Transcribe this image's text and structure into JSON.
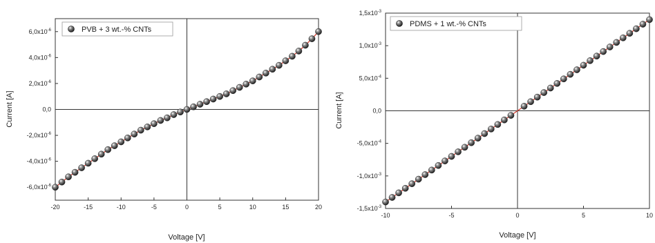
{
  "chart_data": [
    {
      "type": "scatter",
      "title": "",
      "xlabel": "Voltage [V]",
      "ylabel": "Current [A]",
      "xlim": [
        -20,
        20
      ],
      "ylim": [
        -7e-06,
        7e-06
      ],
      "xticks": [
        -20,
        -15,
        -10,
        -5,
        0,
        5,
        10,
        15,
        20
      ],
      "xtick_labels": [
        "-20",
        "-15",
        "-10",
        "-5",
        "0",
        "5",
        "10",
        "15",
        "20"
      ],
      "yticks": [
        -6e-06,
        -4e-06,
        -2e-06,
        0,
        2e-06,
        4e-06,
        6e-06
      ],
      "ytick_labels": [
        {
          "mant": "-6,0x10",
          "exp": "-6"
        },
        {
          "mant": "-4,0x10",
          "exp": "-6"
        },
        {
          "mant": "-2,0x10",
          "exp": "-6"
        },
        {
          "mant": "0,0",
          "exp": ""
        },
        {
          "mant": "2,0x10",
          "exp": "-6"
        },
        {
          "mant": "4,0x10",
          "exp": "-6"
        },
        {
          "mant": "6,0x10",
          "exp": "-6"
        }
      ],
      "legend_position": "top-left",
      "marker_color": "#2b2b2b",
      "line_color": "#d23b2e",
      "series": [
        {
          "name": "PVB + 3 wt.-% CNTs",
          "x": [
            -20,
            -19,
            -18,
            -17,
            -16,
            -15,
            -14,
            -13,
            -12,
            -11,
            -10,
            -9,
            -8,
            -7,
            -6,
            -5,
            -4,
            -3,
            -2,
            -1,
            0,
            1,
            2,
            3,
            4,
            5,
            6,
            7,
            8,
            9,
            10,
            11,
            12,
            13,
            14,
            15,
            16,
            17,
            18,
            19,
            20
          ],
          "y": [
            -6e-06,
            -5.6e-06,
            -5.2e-06,
            -4.85e-06,
            -4.5e-06,
            -4.15e-06,
            -3.8e-06,
            -3.45e-06,
            -3.1e-06,
            -2.8e-06,
            -2.5e-06,
            -2.2e-06,
            -1.9e-06,
            -1.6e-06,
            -1.35e-06,
            -1.1e-06,
            -8.5e-07,
            -6.5e-07,
            -4e-07,
            -2e-07,
            0.0,
            2e-07,
            4e-07,
            6e-07,
            8e-07,
            1e-06,
            1.2e-06,
            1.45e-06,
            1.7e-06,
            1.95e-06,
            2.2e-06,
            2.5e-06,
            2.8e-06,
            3.1e-06,
            3.4e-06,
            3.75e-06,
            4.1e-06,
            4.5e-06,
            4.95e-06,
            5.45e-06,
            6e-06
          ]
        }
      ]
    },
    {
      "type": "scatter",
      "title": "",
      "xlabel": "Voltage [V]",
      "ylabel": "Current [A]",
      "xlim": [
        -10,
        10
      ],
      "ylim": [
        -0.0015,
        0.0015
      ],
      "xticks": [
        -10,
        -5,
        0,
        5,
        10
      ],
      "xtick_labels": [
        "-10",
        "-5",
        "0",
        "5",
        "10"
      ],
      "yticks": [
        -0.0015,
        -0.001,
        -0.0005,
        0,
        0.0005,
        0.001,
        0.0015
      ],
      "ytick_labels": [
        {
          "mant": "-1,5x10",
          "exp": "-3"
        },
        {
          "mant": "-1,0x10",
          "exp": "-3"
        },
        {
          "mant": "-5,0x10",
          "exp": "-4"
        },
        {
          "mant": "0,0",
          "exp": ""
        },
        {
          "mant": "5,0x10",
          "exp": "-4"
        },
        {
          "mant": "1,0x10",
          "exp": "-3"
        },
        {
          "mant": "1,5x10",
          "exp": "-3"
        }
      ],
      "legend_position": "top-left",
      "marker_color": "#2b2b2b",
      "line_color": "#d23b2e",
      "series": [
        {
          "name": "PDMS + 1 wt.-% CNTs",
          "x": [
            -10,
            -9.5,
            -9,
            -8.5,
            -8,
            -7.5,
            -7,
            -6.5,
            -6,
            -5.5,
            -5,
            -4.5,
            -4,
            -3.5,
            -3,
            -2.5,
            -2,
            -1.5,
            -1,
            -0.5,
            0.5,
            1,
            1.5,
            2,
            2.5,
            3,
            3.5,
            4,
            4.5,
            5,
            5.5,
            6,
            6.5,
            7,
            7.5,
            8,
            8.5,
            9,
            9.5,
            10
          ],
          "y": [
            -0.0014,
            -0.00133,
            -0.00126,
            -0.00119,
            -0.00112,
            -0.00105,
            -0.00098,
            -0.00091,
            -0.00084,
            -0.00077,
            -0.0007,
            -0.00063,
            -0.00056,
            -0.00049,
            -0.00042,
            -0.00035,
            -0.00028,
            -0.00021,
            -0.00014,
            -7e-05,
            7e-05,
            0.00014,
            0.00021,
            0.00028,
            0.00035,
            0.00042,
            0.00049,
            0.00056,
            0.00063,
            0.0007,
            0.00077,
            0.00084,
            0.00091,
            0.00098,
            0.00105,
            0.00112,
            0.00119,
            0.00126,
            0.00133,
            0.0014
          ]
        }
      ]
    }
  ]
}
